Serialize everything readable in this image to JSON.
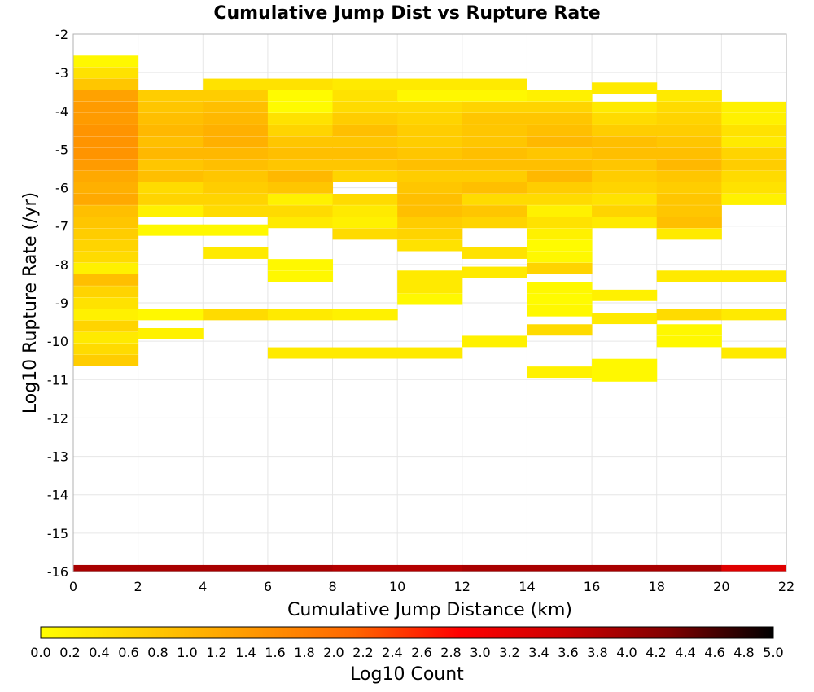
{
  "chart_data": {
    "type": "heatmap",
    "title": "Cumulative Jump Dist vs Rupture Rate",
    "xlabel": "Cumulative Jump Distance (km)",
    "ylabel": "Log10 Rupture Rate (/yr)",
    "xlim": [
      0,
      22
    ],
    "ylim": [
      -16,
      -2
    ],
    "x_ticks": [
      "0",
      "2",
      "4",
      "6",
      "8",
      "10",
      "12",
      "14",
      "16",
      "18",
      "20",
      "22"
    ],
    "y_ticks": [
      "-2",
      "-3",
      "-4",
      "-5",
      "-6",
      "-7",
      "-8",
      "-9",
      "-10",
      "-11",
      "-12",
      "-13",
      "-14",
      "-15",
      "-16"
    ],
    "x_bin_width": 2,
    "y_bin_width": 0.285,
    "colorscale": {
      "label": "Log10 Count",
      "min": 0.0,
      "max": 5.0,
      "ticks": [
        "0.0",
        "0.2",
        "0.4",
        "0.6",
        "0.8",
        "1.0",
        "1.2",
        "1.4",
        "1.6",
        "1.8",
        "2.0",
        "2.2",
        "2.4",
        "2.6",
        "2.8",
        "3.0",
        "3.2",
        "3.4",
        "3.6",
        "3.8",
        "4.0",
        "4.2",
        "4.4",
        "4.6",
        "4.8",
        "5.0"
      ],
      "stops": [
        "#ffff00",
        "#ffcc00",
        "#ff9900",
        "#ff6600",
        "#ff0000",
        "#cc0000",
        "#800000",
        "#000000"
      ]
    },
    "columns": [
      {
        "x_start": 0,
        "cells": [
          [
            -2.7,
            0.1
          ],
          [
            -3.0,
            0.4
          ],
          [
            -3.3,
            0.8
          ],
          [
            -3.6,
            1.3
          ],
          [
            -3.9,
            1.4
          ],
          [
            -4.2,
            1.4
          ],
          [
            -4.5,
            1.5
          ],
          [
            -4.8,
            1.5
          ],
          [
            -5.1,
            1.5
          ],
          [
            -5.4,
            1.4
          ],
          [
            -5.7,
            1.2
          ],
          [
            -6.0,
            1.1
          ],
          [
            -6.3,
            1.2
          ],
          [
            -6.6,
            0.9
          ],
          [
            -6.9,
            0.8
          ],
          [
            -7.2,
            0.7
          ],
          [
            -7.5,
            0.6
          ],
          [
            -7.8,
            0.5
          ],
          [
            -8.1,
            0.2
          ],
          [
            -8.4,
            0.9
          ],
          [
            -8.7,
            0.6
          ],
          [
            -9.0,
            0.4
          ],
          [
            -9.3,
            0.2
          ],
          [
            -9.6,
            0.6
          ],
          [
            -9.9,
            0.3
          ],
          [
            -10.2,
            0.5
          ],
          [
            -10.5,
            0.7
          ]
        ]
      },
      {
        "x_start": 2,
        "cells": [
          [
            -3.6,
            0.7
          ],
          [
            -3.9,
            0.8
          ],
          [
            -4.2,
            0.9
          ],
          [
            -4.5,
            1.0
          ],
          [
            -4.8,
            0.9
          ],
          [
            -5.1,
            1.0
          ],
          [
            -5.4,
            0.8
          ],
          [
            -5.7,
            0.9
          ],
          [
            -6.0,
            0.5
          ],
          [
            -6.3,
            0.6
          ],
          [
            -6.6,
            0.2
          ],
          [
            -7.1,
            0.1
          ],
          [
            -9.3,
            0.1
          ],
          [
            -9.8,
            0.2
          ]
        ]
      },
      {
        "x_start": 4,
        "cells": [
          [
            -3.3,
            0.4
          ],
          [
            -3.6,
            0.7
          ],
          [
            -3.9,
            0.9
          ],
          [
            -4.2,
            1.0
          ],
          [
            -4.5,
            1.1
          ],
          [
            -4.8,
            1.1
          ],
          [
            -5.1,
            1.0
          ],
          [
            -5.4,
            0.9
          ],
          [
            -5.7,
            0.8
          ],
          [
            -6.0,
            0.7
          ],
          [
            -6.3,
            0.6
          ],
          [
            -6.6,
            0.5
          ],
          [
            -7.1,
            0.1
          ],
          [
            -7.7,
            0.3
          ],
          [
            -9.3,
            0.5
          ]
        ]
      },
      {
        "x_start": 6,
        "cells": [
          [
            -3.3,
            0.4
          ],
          [
            -3.6,
            0.05
          ],
          [
            -3.9,
            0.05
          ],
          [
            -4.2,
            0.4
          ],
          [
            -4.5,
            0.6
          ],
          [
            -4.8,
            0.8
          ],
          [
            -5.1,
            0.9
          ],
          [
            -5.4,
            0.8
          ],
          [
            -5.7,
            1.0
          ],
          [
            -6.0,
            0.8
          ],
          [
            -6.3,
            0.2
          ],
          [
            -6.6,
            0.5
          ],
          [
            -6.9,
            0.3
          ],
          [
            -8.0,
            0.1
          ],
          [
            -8.3,
            0.1
          ],
          [
            -9.3,
            0.3
          ],
          [
            -10.3,
            0.3
          ]
        ]
      },
      {
        "x_start": 8,
        "cells": [
          [
            -3.3,
            0.3
          ],
          [
            -3.6,
            0.4
          ],
          [
            -3.9,
            0.5
          ],
          [
            -4.2,
            0.7
          ],
          [
            -4.5,
            0.9
          ],
          [
            -4.8,
            0.8
          ],
          [
            -5.1,
            0.9
          ],
          [
            -5.4,
            0.8
          ],
          [
            -5.7,
            0.6
          ],
          [
            -6.3,
            0.5
          ],
          [
            -6.6,
            0.3
          ],
          [
            -6.9,
            0.2
          ],
          [
            -7.2,
            0.5
          ],
          [
            -9.3,
            0.2
          ],
          [
            -10.3,
            0.3
          ]
        ]
      },
      {
        "x_start": 10,
        "cells": [
          [
            -3.3,
            0.3
          ],
          [
            -3.6,
            0.1
          ],
          [
            -3.9,
            0.5
          ],
          [
            -4.2,
            0.6
          ],
          [
            -4.5,
            0.7
          ],
          [
            -4.8,
            0.7
          ],
          [
            -5.1,
            0.8
          ],
          [
            -5.4,
            0.9
          ],
          [
            -5.7,
            0.7
          ],
          [
            -6.0,
            0.8
          ],
          [
            -6.3,
            0.9
          ],
          [
            -6.6,
            0.9
          ],
          [
            -6.9,
            0.7
          ],
          [
            -7.2,
            0.6
          ],
          [
            -7.5,
            0.4
          ],
          [
            -8.3,
            0.3
          ],
          [
            -8.6,
            0.3
          ],
          [
            -8.9,
            0.1
          ],
          [
            -10.3,
            0.3
          ]
        ]
      },
      {
        "x_start": 12,
        "cells": [
          [
            -3.3,
            0.3
          ],
          [
            -3.6,
            0.1
          ],
          [
            -3.9,
            0.6
          ],
          [
            -4.2,
            0.8
          ],
          [
            -4.5,
            0.8
          ],
          [
            -4.8,
            0.8
          ],
          [
            -5.1,
            0.9
          ],
          [
            -5.4,
            0.9
          ],
          [
            -5.7,
            0.7
          ],
          [
            -6.0,
            0.9
          ],
          [
            -6.3,
            0.5
          ],
          [
            -6.6,
            0.8
          ],
          [
            -6.9,
            0.6
          ],
          [
            -7.7,
            0.4
          ],
          [
            -8.2,
            0.3
          ],
          [
            -10.0,
            0.2
          ]
        ]
      },
      {
        "x_start": 14,
        "cells": [
          [
            -3.6,
            0.2
          ],
          [
            -3.9,
            0.6
          ],
          [
            -4.2,
            0.8
          ],
          [
            -4.5,
            0.9
          ],
          [
            -4.8,
            1.0
          ],
          [
            -5.1,
            0.8
          ],
          [
            -5.4,
            0.9
          ],
          [
            -5.7,
            1.0
          ],
          [
            -6.0,
            0.7
          ],
          [
            -6.3,
            0.5
          ],
          [
            -6.6,
            0.2
          ],
          [
            -6.9,
            0.4
          ],
          [
            -7.2,
            0.2
          ],
          [
            -7.5,
            0.05
          ],
          [
            -7.8,
            0.1
          ],
          [
            -8.1,
            0.6
          ],
          [
            -8.6,
            0.1
          ],
          [
            -8.9,
            0.05
          ],
          [
            -9.2,
            0.1
          ],
          [
            -9.7,
            0.5
          ],
          [
            -10.8,
            0.2
          ]
        ]
      },
      {
        "x_start": 16,
        "cells": [
          [
            -3.4,
            0.3
          ],
          [
            -3.9,
            0.3
          ],
          [
            -4.2,
            0.5
          ],
          [
            -4.5,
            0.7
          ],
          [
            -4.8,
            0.9
          ],
          [
            -5.1,
            0.9
          ],
          [
            -5.4,
            0.8
          ],
          [
            -5.7,
            0.7
          ],
          [
            -6.0,
            0.6
          ],
          [
            -6.3,
            0.4
          ],
          [
            -6.6,
            0.6
          ],
          [
            -6.9,
            0.3
          ],
          [
            -8.8,
            0.2
          ],
          [
            -9.4,
            0.3
          ],
          [
            -10.6,
            0.1
          ],
          [
            -10.9,
            0.1
          ]
        ]
      },
      {
        "x_start": 18,
        "cells": [
          [
            -3.6,
            0.3
          ],
          [
            -3.9,
            0.5
          ],
          [
            -4.2,
            0.6
          ],
          [
            -4.5,
            0.7
          ],
          [
            -4.8,
            0.8
          ],
          [
            -5.1,
            0.9
          ],
          [
            -5.4,
            1.0
          ],
          [
            -5.7,
            0.8
          ],
          [
            -6.0,
            0.7
          ],
          [
            -6.3,
            0.8
          ],
          [
            -6.6,
            0.8
          ],
          [
            -6.9,
            0.9
          ],
          [
            -7.2,
            0.3
          ],
          [
            -8.3,
            0.3
          ],
          [
            -9.3,
            0.5
          ],
          [
            -9.7,
            0.1
          ],
          [
            -10.0,
            0.1
          ]
        ]
      },
      {
        "x_start": 20,
        "cells": [
          [
            -3.9,
            0.2
          ],
          [
            -4.2,
            0.2
          ],
          [
            -4.5,
            0.4
          ],
          [
            -4.8,
            0.3
          ],
          [
            -5.1,
            0.6
          ],
          [
            -5.4,
            0.7
          ],
          [
            -5.7,
            0.5
          ],
          [
            -6.0,
            0.4
          ],
          [
            -6.3,
            0.2
          ],
          [
            -8.3,
            0.3
          ],
          [
            -9.3,
            0.3
          ],
          [
            -10.3,
            0.3
          ]
        ]
      }
    ],
    "bottom_row": {
      "y": -16,
      "values": [
        3.9,
        3.9,
        3.9,
        3.9,
        3.8,
        3.8,
        3.9,
        3.9,
        3.9,
        3.9,
        3.3
      ]
    }
  }
}
